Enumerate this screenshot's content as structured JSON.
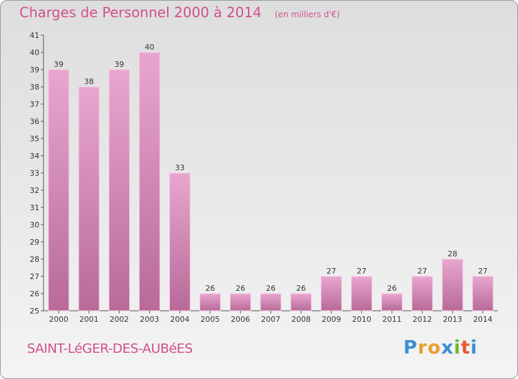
{
  "header": {
    "title": "Charges de Personnel 2000 à 2014",
    "subtitle": "(en milliers d'€)"
  },
  "footer": {
    "commune": "SAINT-LéGER-DES-AUBéES",
    "brand": {
      "letters": [
        "P",
        "r",
        "o",
        "x",
        "i",
        "t",
        "i"
      ],
      "colors": [
        "#3a8fd6",
        "#e8a030",
        "#e8a030",
        "#3a8fd6",
        "#6ab82e",
        "#e85a30",
        "#3a8fd6"
      ]
    }
  },
  "colors": {
    "bar_top": "#e8a6cf",
    "bar_bottom": "#b86a98",
    "bar_edge": "#f3cfe4",
    "accent": "#d0508c"
  },
  "chart_data": {
    "type": "bar",
    "categories": [
      "2000",
      "2001",
      "2002",
      "2003",
      "2004",
      "2005",
      "2006",
      "2007",
      "2008",
      "2009",
      "2010",
      "2011",
      "2012",
      "2013",
      "2014"
    ],
    "values": [
      39,
      38,
      39,
      40,
      33,
      26,
      26,
      26,
      26,
      27,
      27,
      26,
      27,
      28,
      27
    ],
    "ylim": [
      25,
      41
    ],
    "yticks": [
      25,
      26,
      27,
      28,
      29,
      30,
      31,
      32,
      33,
      34,
      35,
      36,
      37,
      38,
      39,
      40,
      41
    ],
    "grid": false,
    "legend": "none"
  }
}
